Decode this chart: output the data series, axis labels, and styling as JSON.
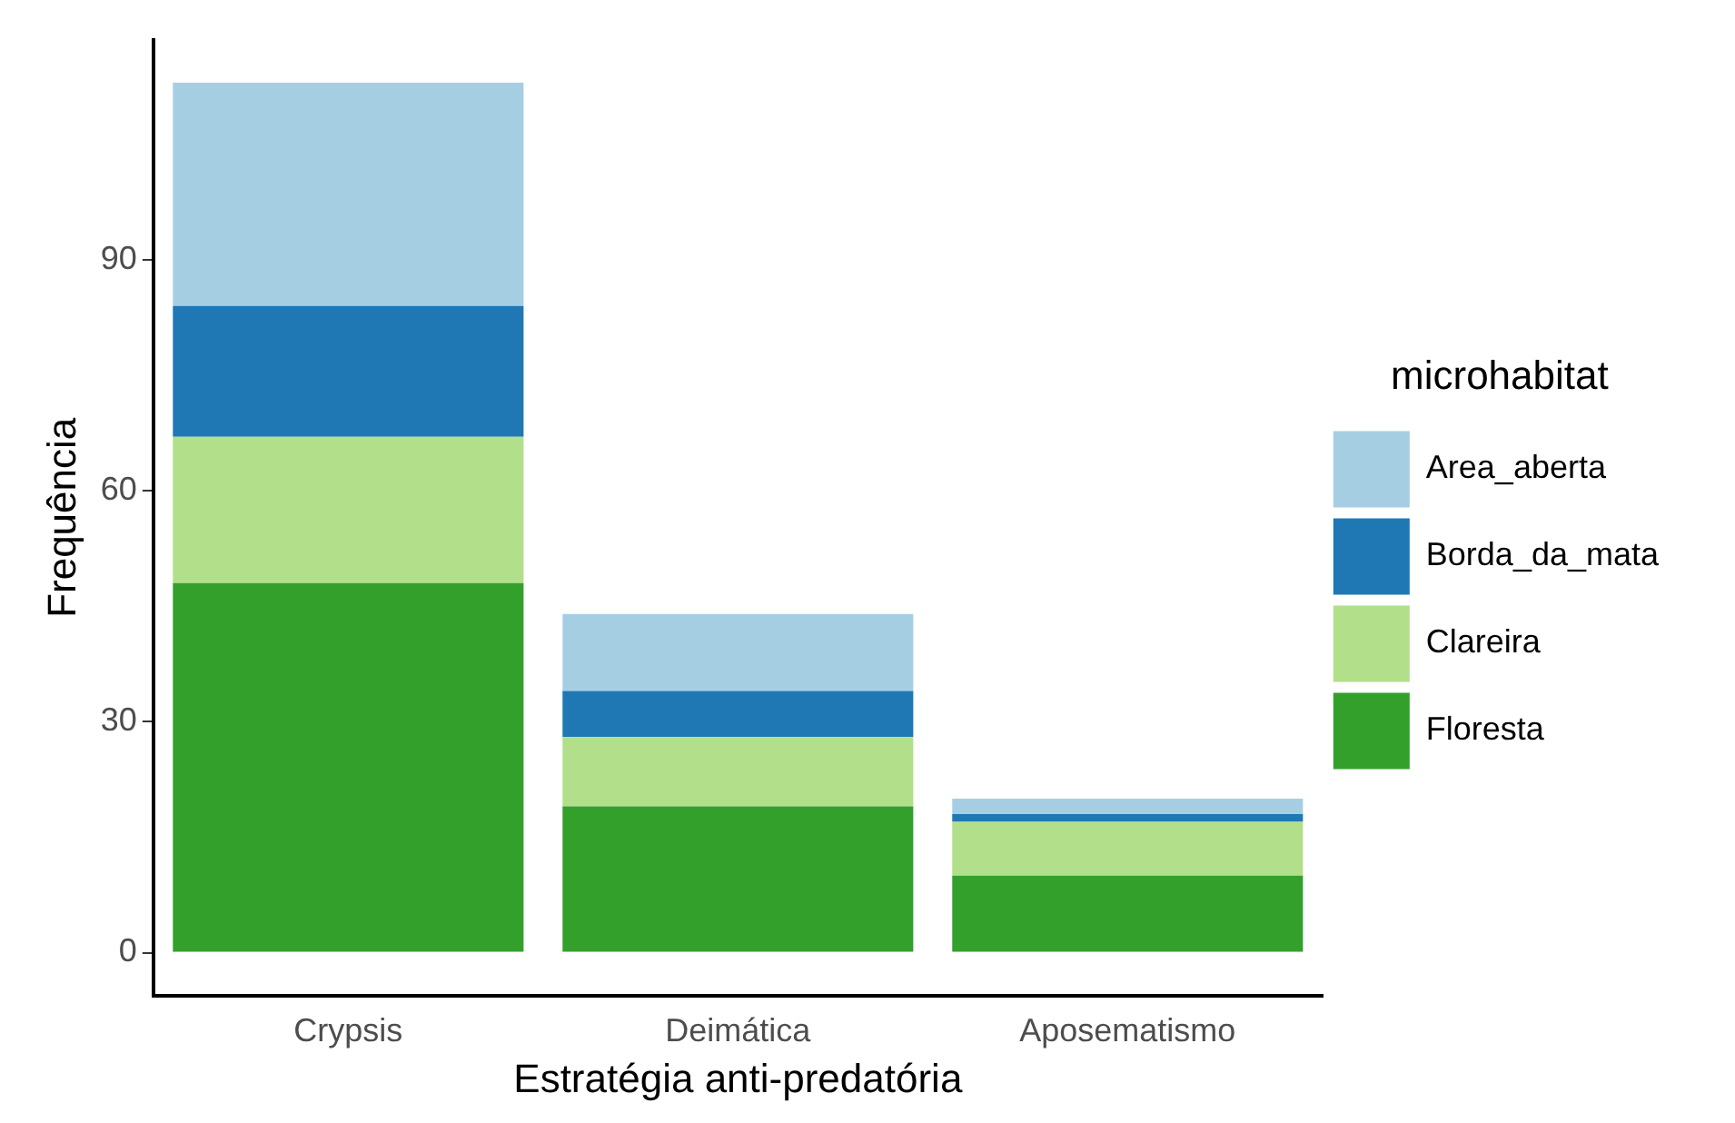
{
  "chart_data": {
    "type": "bar",
    "stacked": true,
    "xlabel": "Estratégia anti-predatória",
    "ylabel": "Frequência",
    "legend_title": "microhabitat",
    "legend": "right",
    "grid": false,
    "categories": [
      "Crypsis",
      "Deimática",
      "Aposematismo"
    ],
    "series": [
      {
        "name": "Floresta",
        "color": "#33a02c",
        "values": [
          48,
          19,
          10
        ]
      },
      {
        "name": "Clareira",
        "color": "#b2df8a",
        "values": [
          19,
          9,
          7
        ]
      },
      {
        "name": "Borda_da_mata",
        "color": "#1f78b4",
        "values": [
          17,
          6,
          1
        ]
      },
      {
        "name": "Area_aberta",
        "color": "#a6cee3",
        "values": [
          29,
          10,
          2
        ]
      }
    ],
    "ylim": [
      -5.6,
      118.6
    ],
    "yticks": [
      0,
      30,
      60,
      90
    ]
  }
}
